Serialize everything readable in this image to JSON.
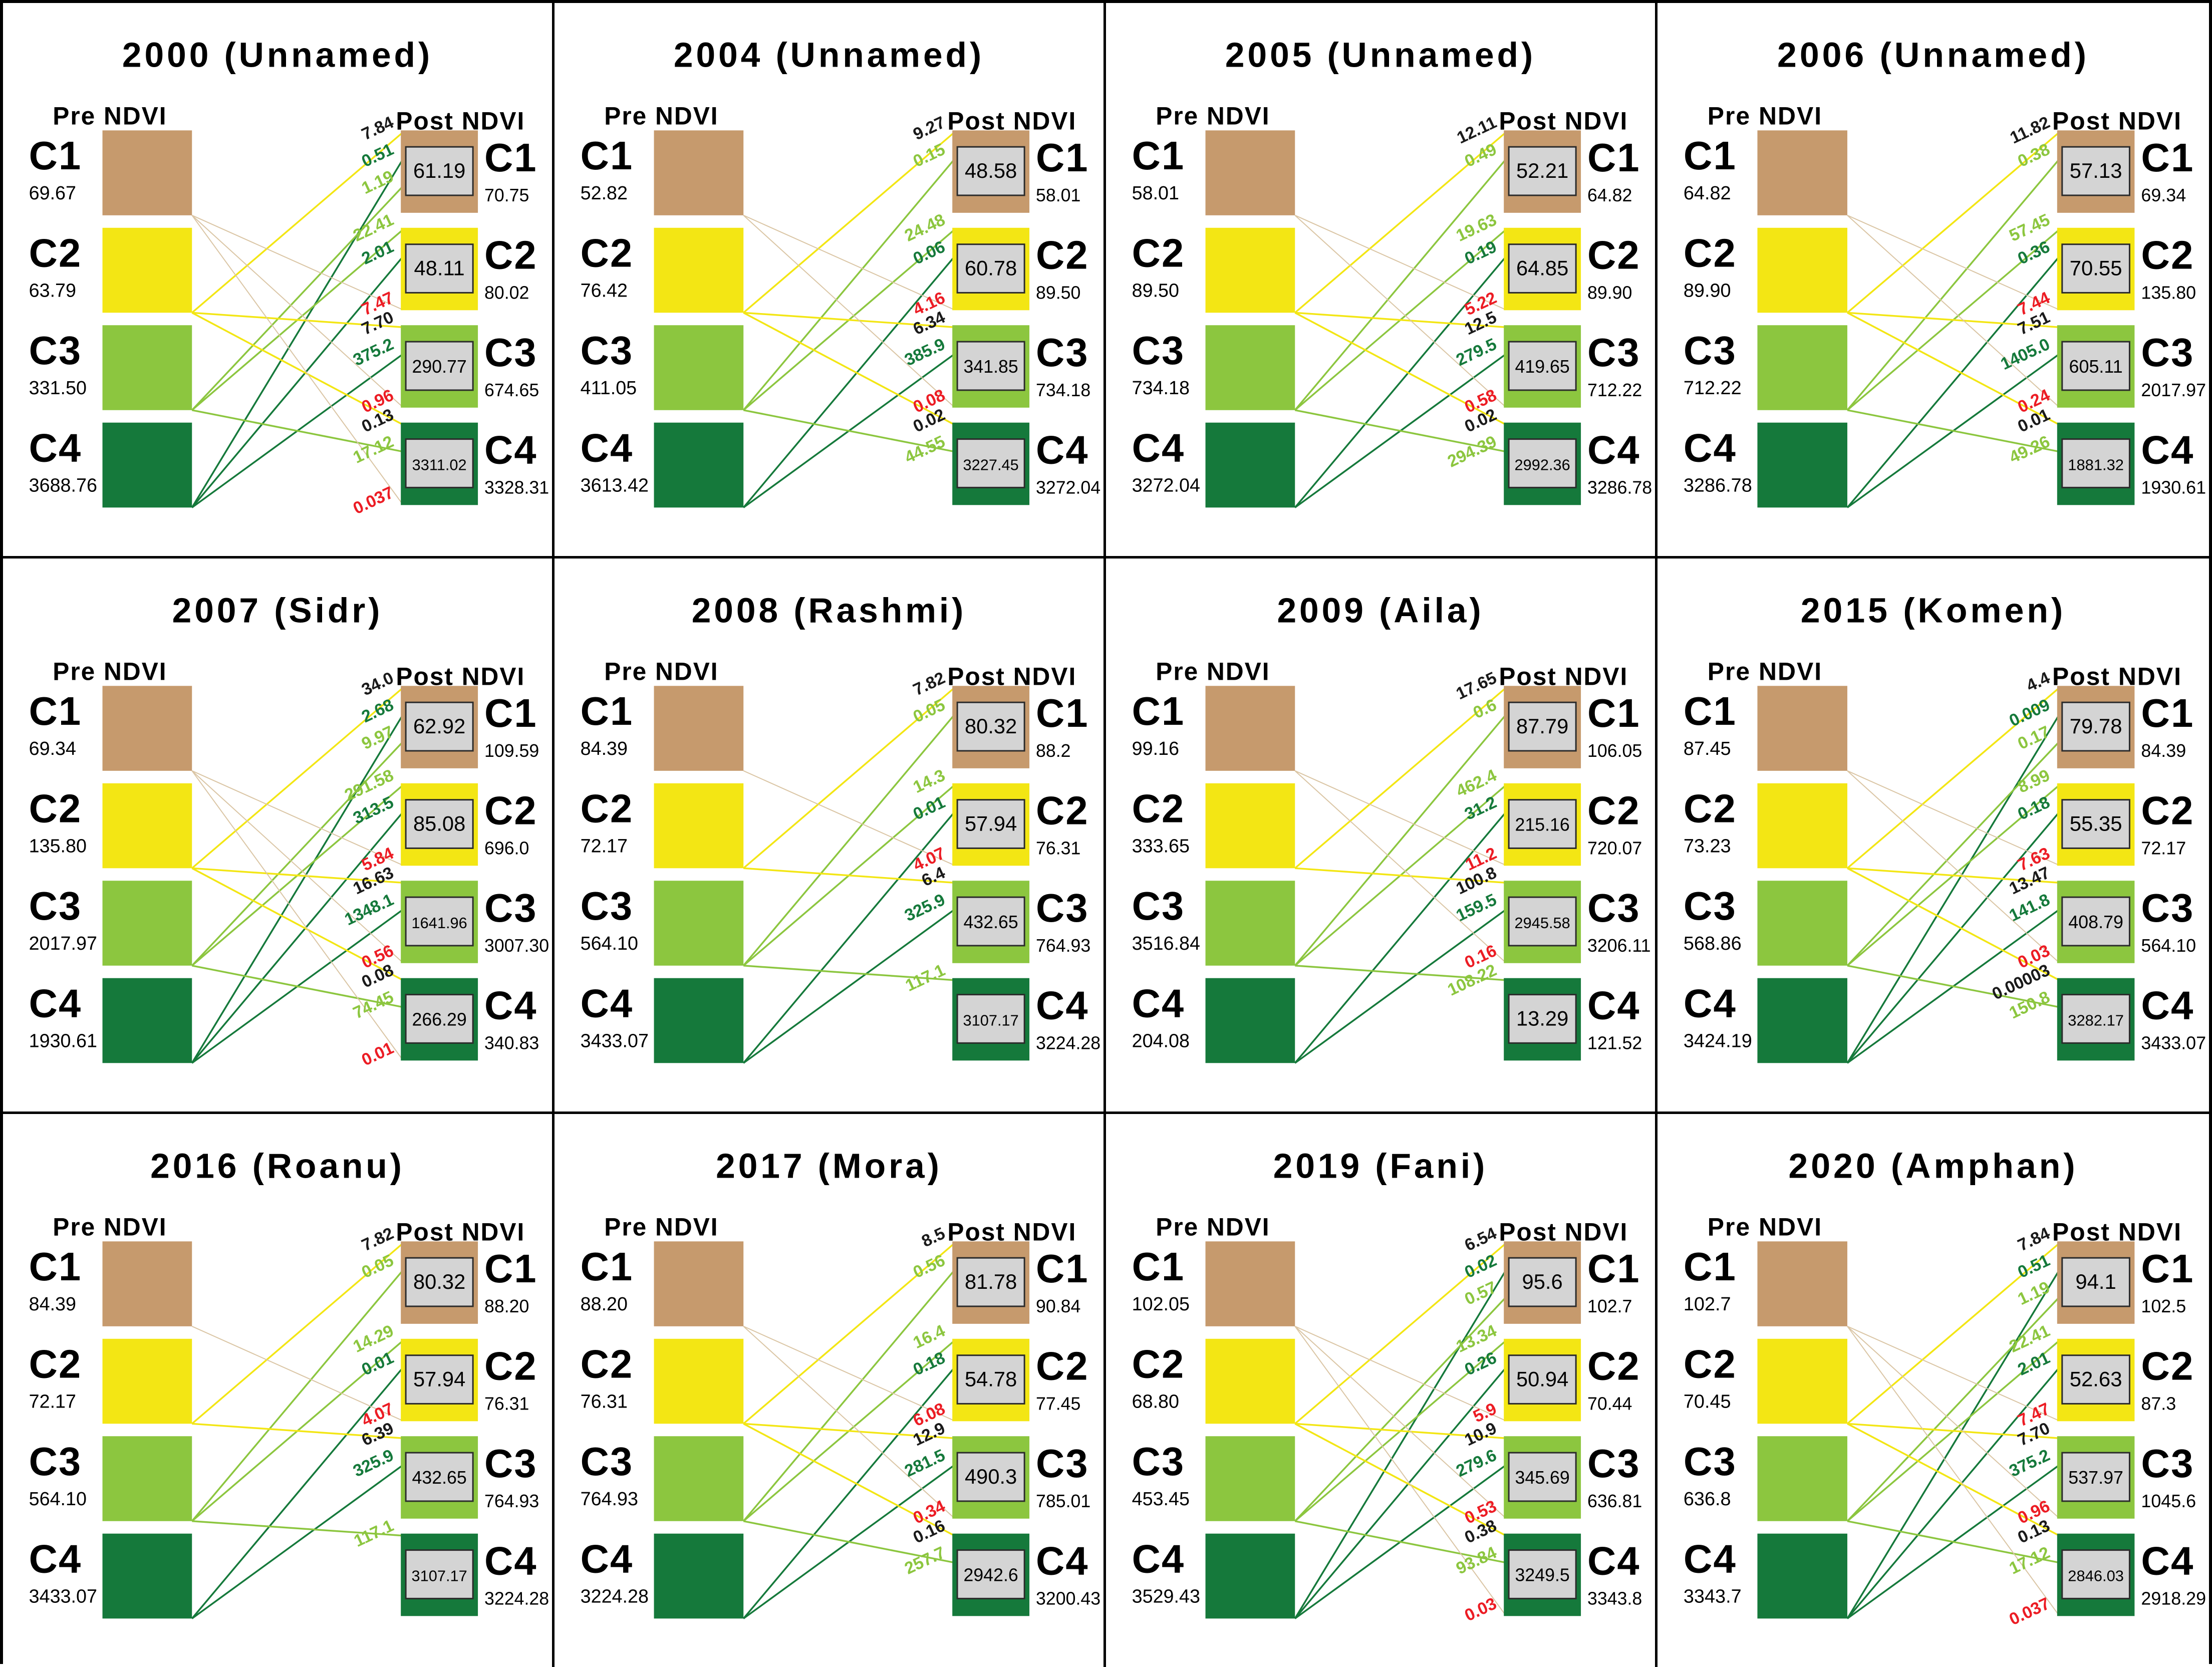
{
  "figure": {
    "pre_axis_label": "Pre NDVI",
    "post_axis_label": "Post NDVI",
    "classes": [
      "C1",
      "C2",
      "C3",
      "C4"
    ]
  },
  "colors": {
    "class_fill": {
      "C1": "#C69A6D",
      "C2": "#F3E614",
      "C3": "#8CC63F",
      "C4": "#15793B"
    },
    "line": {
      "C1": "#DAC5A4",
      "C2": "#F3E614",
      "C3": "#8CC63F",
      "C4": "#15793B"
    },
    "flow_label": {
      "C1": "#EC1C24",
      "C2": "#1A1A1A",
      "C3": "#8CC63F",
      "C4": "#15793B"
    },
    "box_fill": "#D4D4D4",
    "box_border": "#2B2B2B",
    "text": "#000000"
  },
  "chart_data": [
    {
      "type": "sankey",
      "title": "2000 (Unnamed)",
      "year": "2000",
      "cyclone": "Unnamed",
      "pre": {
        "C1": "69.67",
        "C2": "63.79",
        "C3": "331.50",
        "C4": "3688.76"
      },
      "post": {
        "C1": "70.75",
        "C2": "80.02",
        "C3": "674.65",
        "C4": "3328.31"
      },
      "unchanged": {
        "C1": "61.19",
        "C2": "48.11",
        "C3": "290.77",
        "C4": "3311.02"
      },
      "flows": [
        {
          "from": "C2",
          "to": "C1",
          "value": "7.84"
        },
        {
          "from": "C4",
          "to": "C1",
          "value": "0.51"
        },
        {
          "from": "C3",
          "to": "C1",
          "value": "1.19"
        },
        {
          "from": "C3",
          "to": "C2",
          "value": "22.41"
        },
        {
          "from": "C4",
          "to": "C2",
          "value": "2.01"
        },
        {
          "from": "C1",
          "to": "C2",
          "value": "7.47"
        },
        {
          "from": "C2",
          "to": "C3",
          "value": "7.70"
        },
        {
          "from": "C4",
          "to": "C3",
          "value": "375.2"
        },
        {
          "from": "C1",
          "to": "C3",
          "value": "0.96"
        },
        {
          "from": "C2",
          "to": "C4",
          "value": "0.13"
        },
        {
          "from": "C3",
          "to": "C4",
          "value": "17.12"
        },
        {
          "from": "C1",
          "to": "C4",
          "value": "0.037"
        }
      ]
    },
    {
      "type": "sankey",
      "title": "2004 (Unnamed)",
      "year": "2004",
      "cyclone": "Unnamed",
      "pre": {
        "C1": "52.82",
        "C2": "76.42",
        "C3": "411.05",
        "C4": "3613.42"
      },
      "post": {
        "C1": "58.01",
        "C2": "89.50",
        "C3": "734.18",
        "C4": "3272.04"
      },
      "unchanged": {
        "C1": "48.58",
        "C2": "60.78",
        "C3": "341.85",
        "C4": "3227.45"
      },
      "flows": [
        {
          "from": "C2",
          "to": "C1",
          "value": "9.27"
        },
        {
          "from": "C3",
          "to": "C1",
          "value": "0.15"
        },
        {
          "from": "C3",
          "to": "C2",
          "value": "24.48"
        },
        {
          "from": "C4",
          "to": "C2",
          "value": "0.06"
        },
        {
          "from": "C1",
          "to": "C2",
          "value": "4.16"
        },
        {
          "from": "C2",
          "to": "C3",
          "value": "6.34"
        },
        {
          "from": "C4",
          "to": "C3",
          "value": "385.9"
        },
        {
          "from": "C1",
          "to": "C3",
          "value": "0.08"
        },
        {
          "from": "C2",
          "to": "C4",
          "value": "0.02"
        },
        {
          "from": "C3",
          "to": "C4",
          "value": "44.55"
        }
      ]
    },
    {
      "type": "sankey",
      "title": "2005 (Unnamed)",
      "year": "2005",
      "cyclone": "Unnamed",
      "pre": {
        "C1": "58.01",
        "C2": "89.50",
        "C3": "734.18",
        "C4": "3272.04"
      },
      "post": {
        "C1": "64.82",
        "C2": "89.90",
        "C3": "712.22",
        "C4": "3286.78"
      },
      "unchanged": {
        "C1": "52.21",
        "C2": "64.85",
        "C3": "419.65",
        "C4": "2992.36"
      },
      "flows": [
        {
          "from": "C2",
          "to": "C1",
          "value": "12.11"
        },
        {
          "from": "C3",
          "to": "C1",
          "value": "0.49"
        },
        {
          "from": "C3",
          "to": "C2",
          "value": "19.63"
        },
        {
          "from": "C4",
          "to": "C2",
          "value": "0.19"
        },
        {
          "from": "C1",
          "to": "C2",
          "value": "5.22"
        },
        {
          "from": "C2",
          "to": "C3",
          "value": "12.5"
        },
        {
          "from": "C4",
          "to": "C3",
          "value": "279.5"
        },
        {
          "from": "C1",
          "to": "C3",
          "value": "0.58"
        },
        {
          "from": "C2",
          "to": "C4",
          "value": "0.02"
        },
        {
          "from": "C3",
          "to": "C4",
          "value": "294.39"
        }
      ]
    },
    {
      "type": "sankey",
      "title": "2006 (Unnamed)",
      "year": "2006",
      "cyclone": "Unnamed",
      "pre": {
        "C1": "64.82",
        "C2": "89.90",
        "C3": "712.22",
        "C4": "3286.78"
      },
      "post": {
        "C1": "69.34",
        "C2": "135.80",
        "C3": "2017.97",
        "C4": "1930.61"
      },
      "unchanged": {
        "C1": "57.13",
        "C2": "70.55",
        "C3": "605.11",
        "C4": "1881.32"
      },
      "flows": [
        {
          "from": "C2",
          "to": "C1",
          "value": "11.82"
        },
        {
          "from": "C3",
          "to": "C1",
          "value": "0.38"
        },
        {
          "from": "C3",
          "to": "C2",
          "value": "57.45"
        },
        {
          "from": "C4",
          "to": "C2",
          "value": "0.36"
        },
        {
          "from": "C1",
          "to": "C2",
          "value": "7.44"
        },
        {
          "from": "C2",
          "to": "C3",
          "value": "7.51"
        },
        {
          "from": "C4",
          "to": "C3",
          "value": "1405.0"
        },
        {
          "from": "C1",
          "to": "C3",
          "value": "0.24"
        },
        {
          "from": "C2",
          "to": "C4",
          "value": "0.01"
        },
        {
          "from": "C3",
          "to": "C4",
          "value": "49.26"
        }
      ]
    },
    {
      "type": "sankey",
      "title": "2007 (Sidr)",
      "year": "2007",
      "cyclone": "Sidr",
      "pre": {
        "C1": "69.34",
        "C2": "135.80",
        "C3": "2017.97",
        "C4": "1930.61"
      },
      "post": {
        "C1": "109.59",
        "C2": "696.0",
        "C3": "3007.30",
        "C4": "340.83"
      },
      "unchanged": {
        "C1": "62.92",
        "C2": "85.08",
        "C3": "1641.96",
        "C4": "266.29"
      },
      "flows": [
        {
          "from": "C2",
          "to": "C1",
          "value": "34.0"
        },
        {
          "from": "C4",
          "to": "C1",
          "value": "2.68"
        },
        {
          "from": "C3",
          "to": "C1",
          "value": "9.97"
        },
        {
          "from": "C3",
          "to": "C2",
          "value": "291.58"
        },
        {
          "from": "C4",
          "to": "C2",
          "value": "313.5"
        },
        {
          "from": "C1",
          "to": "C2",
          "value": "5.84"
        },
        {
          "from": "C2",
          "to": "C3",
          "value": "16.63"
        },
        {
          "from": "C4",
          "to": "C3",
          "value": "1348.1"
        },
        {
          "from": "C1",
          "to": "C3",
          "value": "0.56"
        },
        {
          "from": "C2",
          "to": "C4",
          "value": "0.08"
        },
        {
          "from": "C3",
          "to": "C4",
          "value": "74.45"
        },
        {
          "from": "C1",
          "to": "C4",
          "value": "0.01"
        }
      ]
    },
    {
      "type": "sankey",
      "title": "2008 (Rashmi)",
      "year": "2008",
      "cyclone": "Rashmi",
      "pre": {
        "C1": "84.39",
        "C2": "72.17",
        "C3": "564.10",
        "C4": "3433.07"
      },
      "post": {
        "C1": "88.2",
        "C2": "76.31",
        "C3": "764.93",
        "C4": "3224.28"
      },
      "unchanged": {
        "C1": "80.32",
        "C2": "57.94",
        "C3": "432.65",
        "C4": "3107.17"
      },
      "flows": [
        {
          "from": "C2",
          "to": "C1",
          "value": "7.82"
        },
        {
          "from": "C3",
          "to": "C1",
          "value": "0.05"
        },
        {
          "from": "C3",
          "to": "C2",
          "value": "14.3"
        },
        {
          "from": "C4",
          "to": "C2",
          "value": "0.01"
        },
        {
          "from": "C1",
          "to": "C2",
          "value": "4.07"
        },
        {
          "from": "C2",
          "to": "C3",
          "value": "6.4"
        },
        {
          "from": "C4",
          "to": "C3",
          "value": "325.9"
        },
        {
          "from": "C3",
          "to": "C4",
          "value": "117.1"
        }
      ]
    },
    {
      "type": "sankey",
      "title": "2009 (Aila)",
      "year": "2009",
      "cyclone": "Aila",
      "pre": {
        "C1": "99.16",
        "C2": "333.65",
        "C3": "3516.84",
        "C4": "204.08"
      },
      "post": {
        "C1": "106.05",
        "C2": "720.07",
        "C3": "3206.11",
        "C4": "121.52"
      },
      "unchanged": {
        "C1": "87.79",
        "C2": "215.16",
        "C3": "2945.58",
        "C4": "13.29"
      },
      "flows": [
        {
          "from": "C2",
          "to": "C1",
          "value": "17.65"
        },
        {
          "from": "C3",
          "to": "C1",
          "value": "0.6"
        },
        {
          "from": "C3",
          "to": "C2",
          "value": "462.4"
        },
        {
          "from": "C4",
          "to": "C2",
          "value": "31.2"
        },
        {
          "from": "C1",
          "to": "C2",
          "value": "11.2"
        },
        {
          "from": "C2",
          "to": "C3",
          "value": "100.8"
        },
        {
          "from": "C4",
          "to": "C3",
          "value": "159.5"
        },
        {
          "from": "C1",
          "to": "C3",
          "value": "0.16"
        },
        {
          "from": "C3",
          "to": "C4",
          "value": "108.22"
        }
      ]
    },
    {
      "type": "sankey",
      "title": "2015 (Komen)",
      "year": "2015",
      "cyclone": "Komen",
      "pre": {
        "C1": "87.45",
        "C2": "73.23",
        "C3": "568.86",
        "C4": "3424.19"
      },
      "post": {
        "C1": "84.39",
        "C2": "72.17",
        "C3": "564.10",
        "C4": "3433.07"
      },
      "unchanged": {
        "C1": "79.78",
        "C2": "55.35",
        "C3": "408.79",
        "C4": "3282.17"
      },
      "flows": [
        {
          "from": "C2",
          "to": "C1",
          "value": "4.4"
        },
        {
          "from": "C4",
          "to": "C1",
          "value": "0.009"
        },
        {
          "from": "C3",
          "to": "C1",
          "value": "0.17"
        },
        {
          "from": "C3",
          "to": "C2",
          "value": "8.99"
        },
        {
          "from": "C4",
          "to": "C2",
          "value": "0.18"
        },
        {
          "from": "C1",
          "to": "C2",
          "value": "7.63"
        },
        {
          "from": "C2",
          "to": "C3",
          "value": "13.47"
        },
        {
          "from": "C4",
          "to": "C3",
          "value": "141.8"
        },
        {
          "from": "C1",
          "to": "C3",
          "value": "0.03"
        },
        {
          "from": "C2",
          "to": "C4",
          "value": "0.00003"
        },
        {
          "from": "C3",
          "to": "C4",
          "value": "150.8"
        }
      ]
    },
    {
      "type": "sankey",
      "title": "2016 (Roanu)",
      "year": "2016",
      "cyclone": "Roanu",
      "pre": {
        "C1": "84.39",
        "C2": "72.17",
        "C3": "564.10",
        "C4": "3433.07"
      },
      "post": {
        "C1": "88.20",
        "C2": "76.31",
        "C3": "764.93",
        "C4": "3224.28"
      },
      "unchanged": {
        "C1": "80.32",
        "C2": "57.94",
        "C3": "432.65",
        "C4": "3107.17"
      },
      "flows": [
        {
          "from": "C2",
          "to": "C1",
          "value": "7.82"
        },
        {
          "from": "C3",
          "to": "C1",
          "value": "0.05"
        },
        {
          "from": "C3",
          "to": "C2",
          "value": "14.29"
        },
        {
          "from": "C4",
          "to": "C2",
          "value": "0.01"
        },
        {
          "from": "C1",
          "to": "C2",
          "value": "4.07"
        },
        {
          "from": "C2",
          "to": "C3",
          "value": "6.39"
        },
        {
          "from": "C4",
          "to": "C3",
          "value": "325.9"
        },
        {
          "from": "C3",
          "to": "C4",
          "value": "117.1"
        }
      ]
    },
    {
      "type": "sankey",
      "title": "2017 (Mora)",
      "year": "2017",
      "cyclone": "Mora",
      "pre": {
        "C1": "88.20",
        "C2": "76.31",
        "C3": "764.93",
        "C4": "3224.28"
      },
      "post": {
        "C1": "90.84",
        "C2": "77.45",
        "C3": "785.01",
        "C4": "3200.43"
      },
      "unchanged": {
        "C1": "81.78",
        "C2": "54.78",
        "C3": "490.3",
        "C4": "2942.6"
      },
      "flows": [
        {
          "from": "C2",
          "to": "C1",
          "value": "8.5"
        },
        {
          "from": "C3",
          "to": "C1",
          "value": "0.56"
        },
        {
          "from": "C3",
          "to": "C2",
          "value": "16.4"
        },
        {
          "from": "C4",
          "to": "C2",
          "value": "0.18"
        },
        {
          "from": "C1",
          "to": "C2",
          "value": "6.08"
        },
        {
          "from": "C2",
          "to": "C3",
          "value": "12.9"
        },
        {
          "from": "C4",
          "to": "C3",
          "value": "281.5"
        },
        {
          "from": "C1",
          "to": "C3",
          "value": "0.34"
        },
        {
          "from": "C2",
          "to": "C4",
          "value": "0.16"
        },
        {
          "from": "C3",
          "to": "C4",
          "value": "257.7"
        }
      ]
    },
    {
      "type": "sankey",
      "title": "2019 (Fani)",
      "year": "2019",
      "cyclone": "Fani",
      "pre": {
        "C1": "102.05",
        "C2": "68.80",
        "C3": "453.45",
        "C4": "3529.43"
      },
      "post": {
        "C1": "102.7",
        "C2": "70.44",
        "C3": "636.81",
        "C4": "3343.8"
      },
      "unchanged": {
        "C1": "95.6",
        "C2": "50.94",
        "C3": "345.69",
        "C4": "3249.5"
      },
      "flows": [
        {
          "from": "C2",
          "to": "C1",
          "value": "6.54"
        },
        {
          "from": "C4",
          "to": "C1",
          "value": "0.02"
        },
        {
          "from": "C3",
          "to": "C1",
          "value": "0.57"
        },
        {
          "from": "C3",
          "to": "C2",
          "value": "13.34"
        },
        {
          "from": "C4",
          "to": "C2",
          "value": "0.26"
        },
        {
          "from": "C1",
          "to": "C2",
          "value": "5.9"
        },
        {
          "from": "C2",
          "to": "C3",
          "value": "10.9"
        },
        {
          "from": "C4",
          "to": "C3",
          "value": "279.6"
        },
        {
          "from": "C1",
          "to": "C3",
          "value": "0.53"
        },
        {
          "from": "C2",
          "to": "C4",
          "value": "0.38"
        },
        {
          "from": "C3",
          "to": "C4",
          "value": "93.84"
        },
        {
          "from": "C1",
          "to": "C4",
          "value": "0.03"
        }
      ]
    },
    {
      "type": "sankey",
      "title": "2020 (Amphan)",
      "year": "2020",
      "cyclone": "Amphan",
      "pre": {
        "C1": "102.7",
        "C2": "70.45",
        "C3": "636.8",
        "C4": "3343.7"
      },
      "post": {
        "C1": "102.5",
        "C2": "87.3",
        "C3": "1045.6",
        "C4": "2918.29"
      },
      "unchanged": {
        "C1": "94.1",
        "C2": "52.63",
        "C3": "537.97",
        "C4": "2846.03"
      },
      "flows": [
        {
          "from": "C2",
          "to": "C1",
          "value": "7.84"
        },
        {
          "from": "C4",
          "to": "C1",
          "value": "0.51"
        },
        {
          "from": "C3",
          "to": "C1",
          "value": "1.19"
        },
        {
          "from": "C3",
          "to": "C2",
          "value": "22.41"
        },
        {
          "from": "C4",
          "to": "C2",
          "value": "2.01"
        },
        {
          "from": "C1",
          "to": "C2",
          "value": "7.47"
        },
        {
          "from": "C2",
          "to": "C3",
          "value": "7.70"
        },
        {
          "from": "C4",
          "to": "C3",
          "value": "375.2"
        },
        {
          "from": "C1",
          "to": "C3",
          "value": "0.96"
        },
        {
          "from": "C2",
          "to": "C4",
          "value": "0.13"
        },
        {
          "from": "C3",
          "to": "C4",
          "value": "17.12"
        },
        {
          "from": "C1",
          "to": "C4",
          "value": "0.037"
        }
      ]
    }
  ]
}
